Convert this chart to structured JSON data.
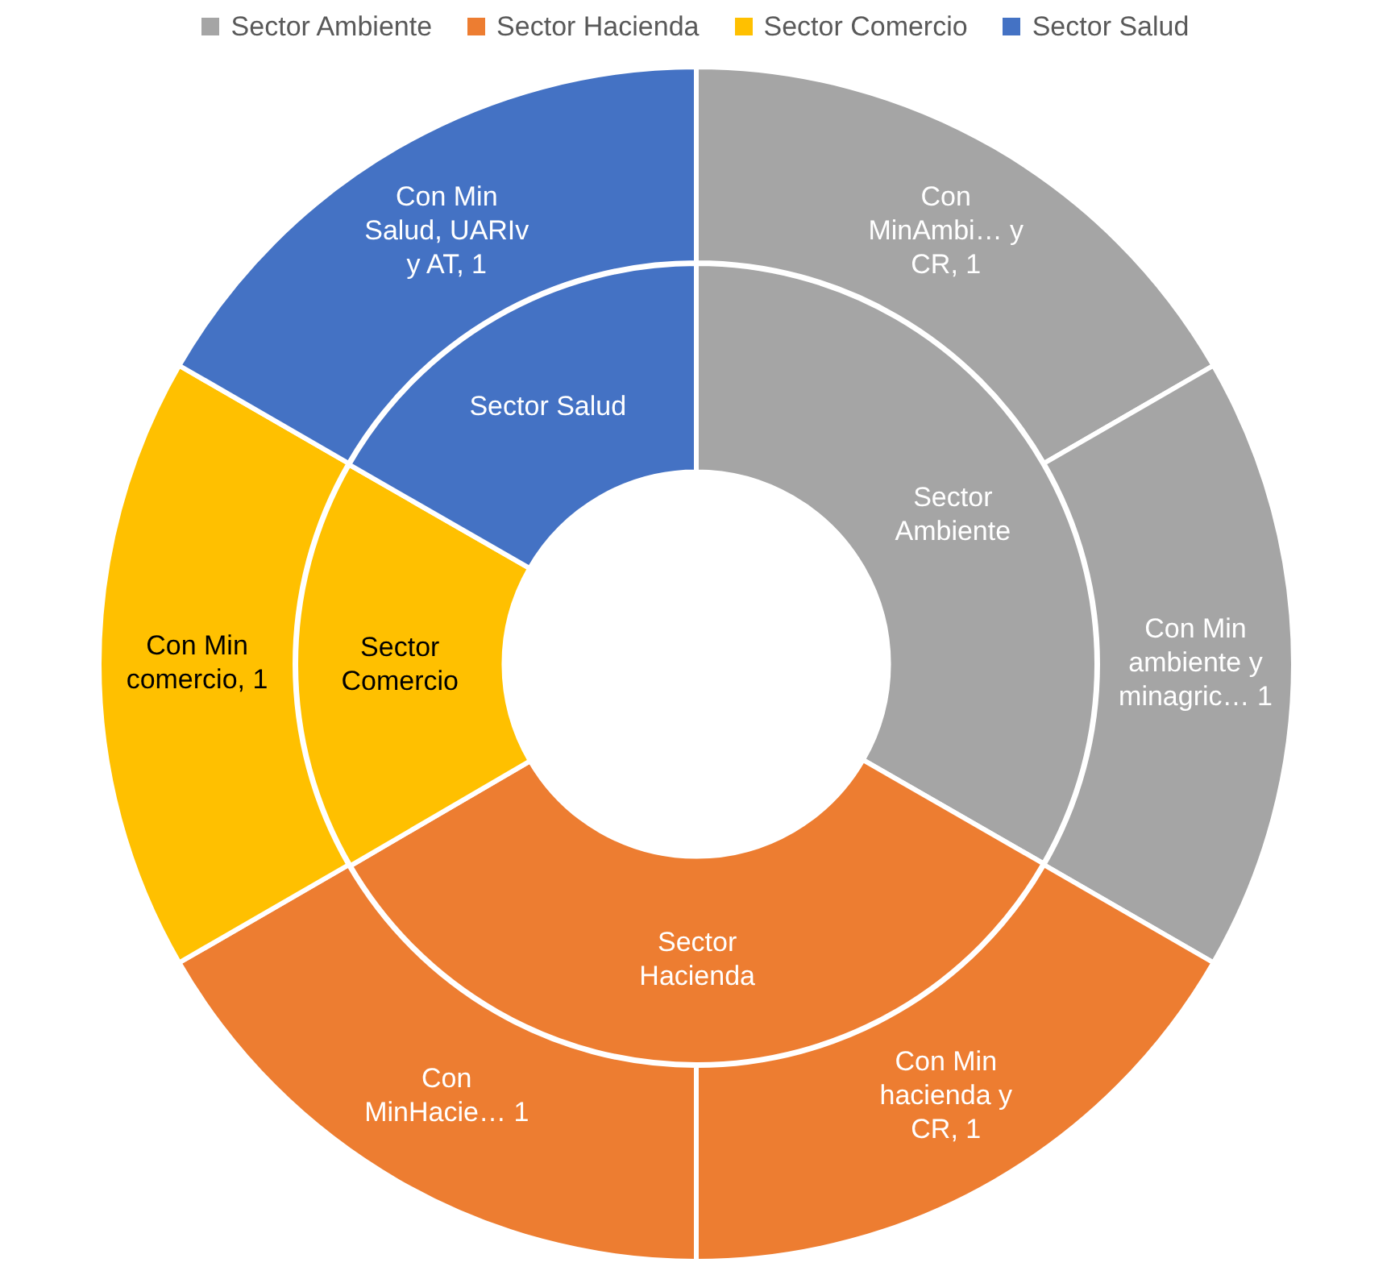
{
  "chart_data": [
    {
      "type": "donut",
      "legend": "top",
      "categories": [
        "Sector Ambiente",
        "Sector Hacienda",
        "Sector Comercio",
        "Sector Salud"
      ],
      "values": [
        33.3,
        33.3,
        16.7,
        16.7
      ],
      "colors": [
        "#a5a5a5",
        "#ed7d31",
        "#ffc000",
        "#4472c4"
      ]
    },
    {
      "type": "donut",
      "categories": [
        "Con MinAmbi… y CR",
        "Con Min ambiente y minagric…",
        "Con Min hacienda y CR",
        "Con MinHacie…",
        "Con Min comercio",
        "Con Min Salud, UARIv y AT"
      ],
      "value_labels": [
        ", 1",
        " 1",
        ", 1",
        " 1",
        ", 1",
        ", 1"
      ],
      "values": [
        1,
        1,
        1,
        1,
        1,
        1
      ],
      "colors": [
        "#a5a5a5",
        "#a5a5a5",
        "#ed7d31",
        "#ed7d31",
        "#ffc000",
        "#4472c4"
      ]
    }
  ]
}
